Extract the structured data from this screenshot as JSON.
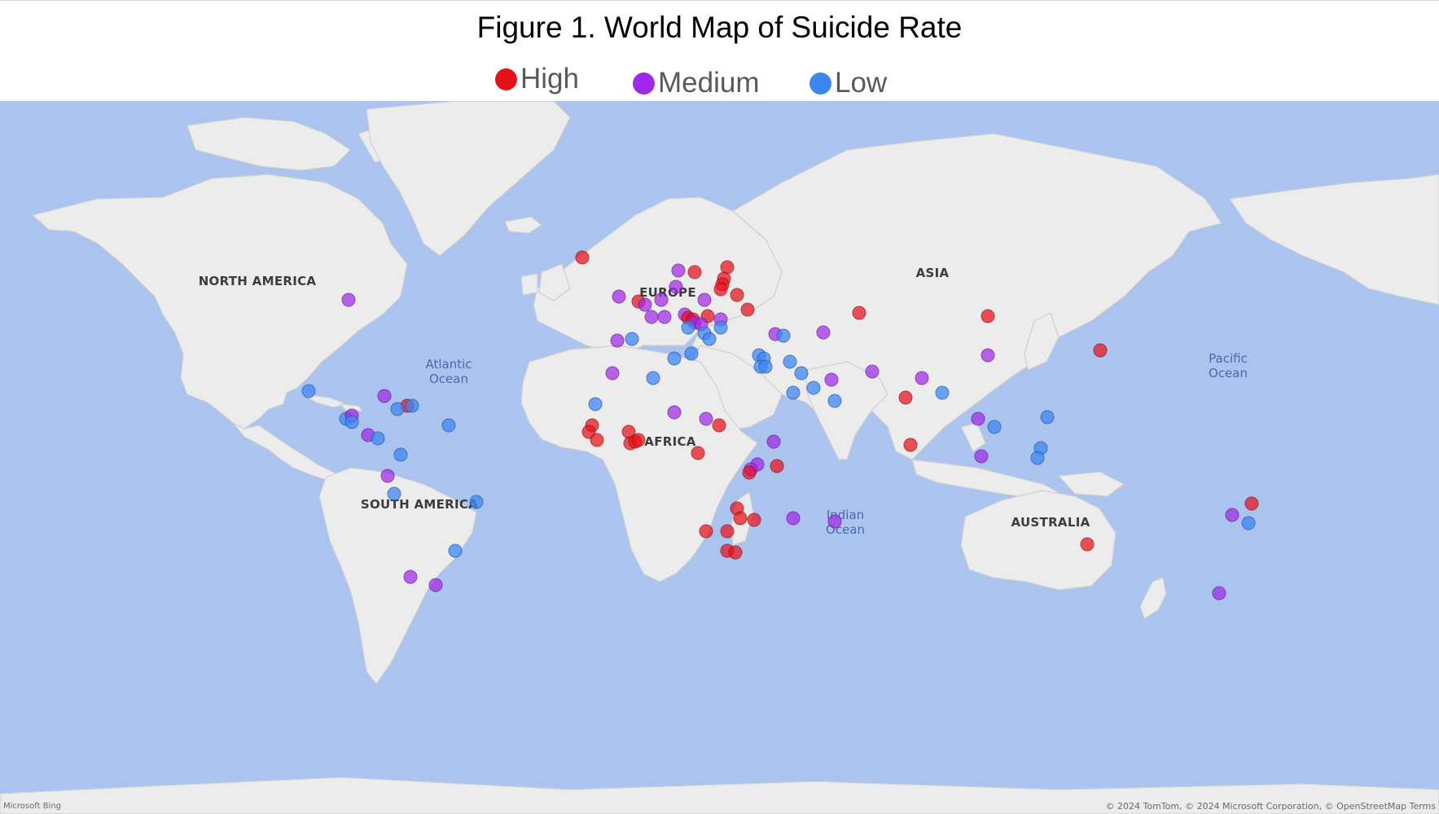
{
  "figure": {
    "title": "Figure 1. World Map of Suicide Rate"
  },
  "legend": [
    {
      "key": "high",
      "label": "High",
      "color": "#e8111a"
    },
    {
      "key": "medium",
      "label": "Medium",
      "color": "#a128e8"
    },
    {
      "key": "low",
      "label": "Low",
      "color": "#3d87f5"
    }
  ],
  "map": {
    "continent_labels": [
      "NORTH AMERICA",
      "SOUTH AMERICA",
      "EUROPE",
      "AFRICA",
      "ASIA",
      "AUSTRALIA"
    ],
    "ocean_labels": [
      {
        "line1": "Atlantic",
        "line2": "Ocean"
      },
      {
        "line1": "Indian",
        "line2": "Ocean"
      },
      {
        "line1": "Pacific",
        "line2": "Ocean"
      }
    ],
    "provider": "Microsoft Bing",
    "attribution": "© 2024 TomTom, © 2024 Microsoft Corporation, © OpenStreetMap  Terms",
    "marker_colors": {
      "high": "rgba(232,17,26,0.72)",
      "medium": "rgba(161,40,232,0.72)",
      "low": "rgba(61,135,245,0.75)"
    },
    "markers": [
      {
        "category": "medium",
        "lon": -90,
        "lat": 52
      },
      {
        "category": "high",
        "lon": -19,
        "lat": 65
      },
      {
        "category": "high",
        "lon": 25,
        "lat": 62
      },
      {
        "category": "medium",
        "lon": 10,
        "lat": 61
      },
      {
        "category": "high",
        "lon": 15,
        "lat": 60.5
      },
      {
        "category": "medium",
        "lon": 9.5,
        "lat": 56
      },
      {
        "category": "high",
        "lon": 24,
        "lat": 58.5
      },
      {
        "category": "high",
        "lon": 23.5,
        "lat": 56.8
      },
      {
        "category": "high",
        "lon": 23,
        "lat": 55.2
      },
      {
        "category": "high",
        "lon": 28,
        "lat": 53.5
      },
      {
        "category": "high",
        "lon": 31,
        "lat": 49
      },
      {
        "category": "medium",
        "lon": -8,
        "lat": 53
      },
      {
        "category": "high",
        "lon": -2,
        "lat": 51.5
      },
      {
        "category": "medium",
        "lon": 0,
        "lat": 50.5
      },
      {
        "category": "medium",
        "lon": 5,
        "lat": 52
      },
      {
        "category": "medium",
        "lon": 18,
        "lat": 52
      },
      {
        "category": "medium",
        "lon": 2,
        "lat": 46.8
      },
      {
        "category": "medium",
        "lon": 6,
        "lat": 46.8
      },
      {
        "category": "medium",
        "lon": 12,
        "lat": 47.5
      },
      {
        "category": "high",
        "lon": 13,
        "lat": 46.5
      },
      {
        "category": "high",
        "lon": 14.5,
        "lat": 46
      },
      {
        "category": "high",
        "lon": 19,
        "lat": 47
      },
      {
        "category": "medium",
        "lon": 15,
        "lat": 45
      },
      {
        "category": "medium",
        "lon": 17,
        "lat": 44.5
      },
      {
        "category": "medium",
        "lon": 23,
        "lat": 46
      },
      {
        "category": "low",
        "lon": 13,
        "lat": 43.5
      },
      {
        "category": "low",
        "lon": 18,
        "lat": 41.8
      },
      {
        "category": "low",
        "lon": 23,
        "lat": 43.5
      },
      {
        "category": "low",
        "lon": 19.5,
        "lat": 40
      },
      {
        "category": "medium",
        "lon": -8.5,
        "lat": 39.5
      },
      {
        "category": "low",
        "lon": -4,
        "lat": 40
      },
      {
        "category": "low",
        "lon": 14,
        "lat": 35.5
      },
      {
        "category": "low",
        "lon": 9,
        "lat": 34
      },
      {
        "category": "medium",
        "lon": 39.5,
        "lat": 41.5
      },
      {
        "category": "low",
        "lon": 42,
        "lat": 41
      },
      {
        "category": "medium",
        "lon": 54,
        "lat": 42
      },
      {
        "category": "high",
        "lon": 65,
        "lat": 48
      },
      {
        "category": "high",
        "lon": 104,
        "lat": 47
      },
      {
        "category": "medium",
        "lon": 104,
        "lat": 35
      },
      {
        "category": "high",
        "lon": 138,
        "lat": 36.5
      },
      {
        "category": "low",
        "lon": 34.5,
        "lat": 35
      },
      {
        "category": "low",
        "lon": 36,
        "lat": 34
      },
      {
        "category": "low",
        "lon": 35,
        "lat": 31.5
      },
      {
        "category": "low",
        "lon": 36.5,
        "lat": 31.5
      },
      {
        "category": "low",
        "lon": 44,
        "lat": 33
      },
      {
        "category": "low",
        "lon": 47.5,
        "lat": 29.5
      },
      {
        "category": "medium",
        "lon": 56.5,
        "lat": 27.5
      },
      {
        "category": "low",
        "lon": 51,
        "lat": 25
      },
      {
        "category": "medium",
        "lon": 69,
        "lat": 30
      },
      {
        "category": "medium",
        "lon": 84,
        "lat": 28
      },
      {
        "category": "high",
        "lon": 79,
        "lat": 22
      },
      {
        "category": "low",
        "lon": 45,
        "lat": 23.5
      },
      {
        "category": "low",
        "lon": 57.5,
        "lat": 21
      },
      {
        "category": "low",
        "lon": 90,
        "lat": 23.5
      },
      {
        "category": "high",
        "lon": 80.5,
        "lat": 7.5
      },
      {
        "category": "medium",
        "lon": 101,
        "lat": 15.5
      },
      {
        "category": "low",
        "lon": 106,
        "lat": 13
      },
      {
        "category": "low",
        "lon": 122,
        "lat": 16
      },
      {
        "category": "low",
        "lon": 120,
        "lat": 6.5
      },
      {
        "category": "low",
        "lon": 119,
        "lat": 3.5
      },
      {
        "category": "medium",
        "lon": 102,
        "lat": 4
      },
      {
        "category": "medium",
        "lon": -10,
        "lat": 29.5
      },
      {
        "category": "low",
        "lon": 2.5,
        "lat": 28
      },
      {
        "category": "low",
        "lon": -15,
        "lat": 20
      },
      {
        "category": "medium",
        "lon": 9,
        "lat": 17.5
      },
      {
        "category": "medium",
        "lon": 18.5,
        "lat": 15.5
      },
      {
        "category": "high",
        "lon": 22.5,
        "lat": 13.5
      },
      {
        "category": "medium",
        "lon": 39,
        "lat": 8.5
      },
      {
        "category": "high",
        "lon": -16,
        "lat": 13.5
      },
      {
        "category": "high",
        "lon": -17,
        "lat": 11.5
      },
      {
        "category": "high",
        "lon": -14.5,
        "lat": 9
      },
      {
        "category": "high",
        "lon": -5,
        "lat": 11.5
      },
      {
        "category": "high",
        "lon": -4.5,
        "lat": 8
      },
      {
        "category": "high",
        "lon": -3,
        "lat": 8.5
      },
      {
        "category": "high",
        "lon": -2,
        "lat": 9
      },
      {
        "category": "high",
        "lon": 16,
        "lat": 5
      },
      {
        "category": "medium",
        "lon": 34,
        "lat": 1.5
      },
      {
        "category": "medium",
        "lon": 32,
        "lat": 0
      },
      {
        "category": "high",
        "lon": 31.5,
        "lat": -1
      },
      {
        "category": "high",
        "lon": 40,
        "lat": 1
      },
      {
        "category": "high",
        "lon": 28,
        "lat": -12
      },
      {
        "category": "high",
        "lon": 29,
        "lat": -15
      },
      {
        "category": "high",
        "lon": 33,
        "lat": -15.5
      },
      {
        "category": "high",
        "lon": 18.5,
        "lat": -19
      },
      {
        "category": "high",
        "lon": 25,
        "lat": -19
      },
      {
        "category": "high",
        "lon": 25,
        "lat": -25
      },
      {
        "category": "high",
        "lon": 27.5,
        "lat": -25.5
      },
      {
        "category": "medium",
        "lon": 45,
        "lat": -15
      },
      {
        "category": "medium",
        "lon": 57.5,
        "lat": -16
      },
      {
        "category": "high",
        "lon": 134,
        "lat": -23
      },
      {
        "category": "medium",
        "lon": 174,
        "lat": -38
      },
      {
        "category": "medium",
        "lon": 178,
        "lat": -14
      },
      {
        "category": "high",
        "lon": 184,
        "lat": -10.5
      },
      {
        "category": "low",
        "lon": 183,
        "lat": -16.5
      },
      {
        "category": "low",
        "lon": -102,
        "lat": 24
      },
      {
        "category": "medium",
        "lon": -79,
        "lat": 22.5
      },
      {
        "category": "high",
        "lon": -72,
        "lat": 19.5
      },
      {
        "category": "low",
        "lon": -70.5,
        "lat": 19.5
      },
      {
        "category": "low",
        "lon": -90.5,
        "lat": 15.5
      },
      {
        "category": "medium",
        "lon": -89,
        "lat": 16.5
      },
      {
        "category": "low",
        "lon": -89,
        "lat": 14.5
      },
      {
        "category": "low",
        "lon": -75,
        "lat": 18.5
      },
      {
        "category": "low",
        "lon": -59.5,
        "lat": 13.5
      },
      {
        "category": "medium",
        "lon": -84,
        "lat": 10.5
      },
      {
        "category": "low",
        "lon": -81,
        "lat": 9.5
      },
      {
        "category": "low",
        "lon": -74,
        "lat": 4.5
      },
      {
        "category": "medium",
        "lon": -78,
        "lat": -2
      },
      {
        "category": "low",
        "lon": -76,
        "lat": -7.5
      },
      {
        "category": "low",
        "lon": -51,
        "lat": -10
      },
      {
        "category": "low",
        "lon": -57.5,
        "lat": -25
      },
      {
        "category": "medium",
        "lon": -71,
        "lat": -33
      },
      {
        "category": "medium",
        "lon": -63.5,
        "lat": -35.5
      }
    ]
  }
}
